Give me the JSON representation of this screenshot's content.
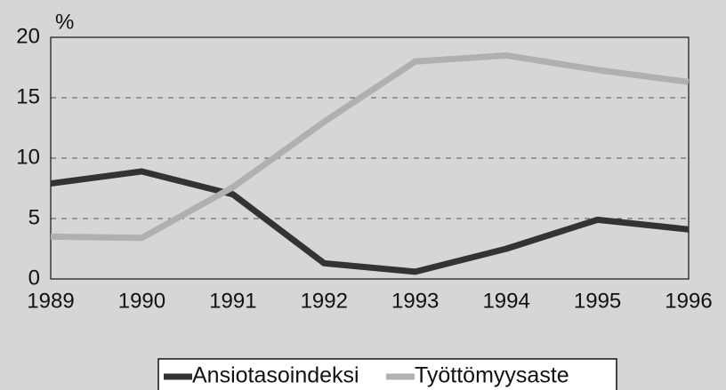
{
  "chart_data": {
    "type": "line",
    "ylabel": "%",
    "categories": [
      "1989",
      "1990",
      "1991",
      "1992",
      "1993",
      "1994",
      "1995",
      "1996"
    ],
    "series": [
      {
        "name": "Ansiotasoindeksi",
        "color": "#333333",
        "values": [
          7.9,
          8.9,
          7.0,
          1.3,
          0.6,
          2.5,
          4.9,
          4.1
        ]
      },
      {
        "name": "Työttömyysaste",
        "color": "#b0b0b0",
        "values": [
          3.5,
          3.4,
          7.6,
          13.0,
          18.0,
          18.5,
          17.3,
          16.3
        ]
      }
    ],
    "ylim": [
      0,
      20
    ],
    "yticks": [
      0,
      5,
      10,
      15,
      20
    ],
    "grid": true,
    "legend": "bottom"
  }
}
